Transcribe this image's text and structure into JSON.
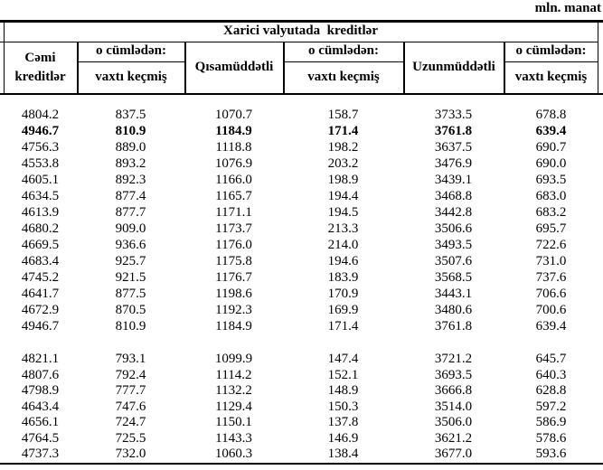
{
  "page": {
    "unit_label": "mln. manat"
  },
  "table": {
    "title": "Xarici valyutada  kreditlər",
    "header": {
      "total": "Cəmi kreditlər",
      "including": "o cümlədən:",
      "overdue": "vaxtı keçmiş",
      "short_term": "Qısamüddətli",
      "long_term": "Uzunmüddətli"
    },
    "body": {
      "groups": [
        {
          "rows": [
            {
              "values": [
                "4804.2",
                "837.5",
                "1070.7",
                "158.7",
                "3733.5",
                "678.8"
              ]
            },
            {
              "values": [
                "4946.7",
                "810.9",
                "1184.9",
                "171.4",
                "3761.8",
                "639.4"
              ],
              "bold": true
            },
            {
              "values": [
                "4756.3",
                "889.0",
                "1118.8",
                "198.2",
                "3637.5",
                "690.7"
              ]
            },
            {
              "values": [
                "4553.8",
                "893.2",
                "1076.9",
                "203.2",
                "3476.9",
                "690.0"
              ]
            },
            {
              "values": [
                "4605.1",
                "892.3",
                "1166.0",
                "198.9",
                "3439.1",
                "693.5"
              ]
            },
            {
              "values": [
                "4634.5",
                "877.4",
                "1165.7",
                "194.4",
                "3468.8",
                "683.0"
              ]
            },
            {
              "values": [
                "4613.9",
                "877.7",
                "1171.1",
                "194.5",
                "3442.8",
                "683.2"
              ]
            },
            {
              "values": [
                "4680.2",
                "909.0",
                "1173.7",
                "213.3",
                "3506.6",
                "695.7"
              ]
            },
            {
              "values": [
                "4669.5",
                "936.6",
                "1176.0",
                "214.0",
                "3493.5",
                "722.6"
              ]
            },
            {
              "values": [
                "4683.4",
                "925.7",
                "1175.8",
                "194.6",
                "3507.6",
                "731.0"
              ]
            },
            {
              "values": [
                "4745.2",
                "921.5",
                "1176.7",
                "183.9",
                "3568.5",
                "737.6"
              ]
            },
            {
              "values": [
                "4641.7",
                "877.5",
                "1198.6",
                "170.9",
                "3443.1",
                "706.6"
              ]
            },
            {
              "values": [
                "4672.9",
                "870.5",
                "1192.3",
                "169.9",
                "3480.6",
                "700.6"
              ]
            },
            {
              "values": [
                "4946.7",
                "810.9",
                "1184.9",
                "171.4",
                "3761.8",
                "639.4"
              ]
            }
          ]
        },
        {
          "rows": [
            {
              "values": [
                "4821.1",
                "793.1",
                "1099.9",
                "147.4",
                "3721.2",
                "645.7"
              ]
            },
            {
              "values": [
                "4807.6",
                "792.4",
                "1114.2",
                "152.1",
                "3693.5",
                "640.3"
              ]
            },
            {
              "values": [
                "4798.9",
                "777.7",
                "1132.2",
                "148.9",
                "3666.8",
                "628.8"
              ]
            },
            {
              "values": [
                "4643.4",
                "747.6",
                "1129.4",
                "150.3",
                "3514.0",
                "597.2"
              ]
            },
            {
              "values": [
                "4656.1",
                "724.7",
                "1150.1",
                "137.8",
                "3506.0",
                "586.9"
              ]
            },
            {
              "values": [
                "4764.5",
                "725.5",
                "1143.3",
                "146.9",
                "3621.2",
                "578.6"
              ]
            },
            {
              "values": [
                "4737.3",
                "732.0",
                "1060.3",
                "138.4",
                "3677.0",
                "593.6"
              ]
            }
          ]
        }
      ]
    }
  }
}
